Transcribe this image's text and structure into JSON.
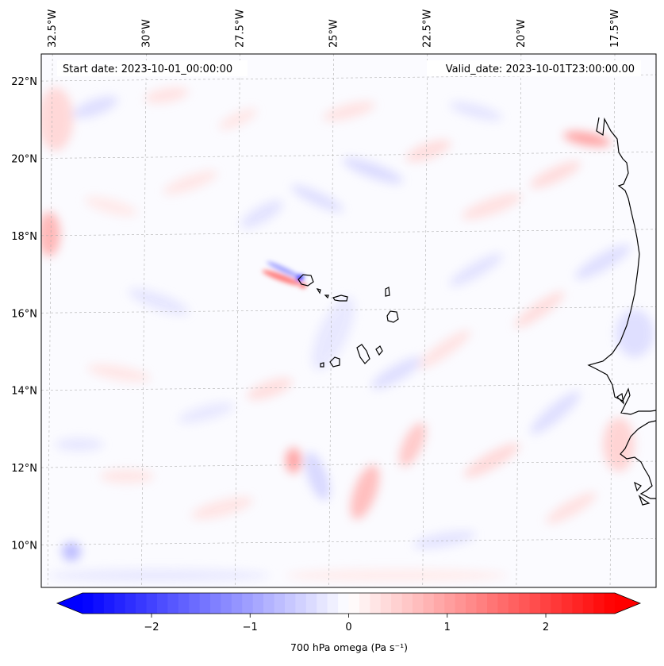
{
  "map": {
    "start_label": "Start date: 2023-10-01_00:00:00",
    "valid_label": "Valid_date: 2023-10-01T23:00:00.00",
    "longitudes": [
      {
        "lon": -32.5,
        "label": "32.5°W"
      },
      {
        "lon": -30.0,
        "label": "30°W"
      },
      {
        "lon": -27.5,
        "label": "27.5°W"
      },
      {
        "lon": -25.0,
        "label": "25°W"
      },
      {
        "lon": -22.5,
        "label": "22.5°W"
      },
      {
        "lon": -20.0,
        "label": "20°W"
      },
      {
        "lon": -17.5,
        "label": "17.5°W"
      }
    ],
    "latitudes": [
      {
        "lat": 22,
        "label": "22°N"
      },
      {
        "lat": 20,
        "label": "20°N"
      },
      {
        "lat": 18,
        "label": "18°N"
      },
      {
        "lat": 16,
        "label": "16°N"
      },
      {
        "lat": 14,
        "label": "14°N"
      },
      {
        "lat": 12,
        "label": "12°N"
      },
      {
        "lat": 10,
        "label": "10°N"
      }
    ],
    "extent": {
      "lon_min": -32.8,
      "lon_max": -16.4,
      "lat_min": 8.9,
      "lat_max": 22.7
    },
    "colors": {
      "negative": "#0000ff",
      "zero": "#ffffff",
      "positive": "#ff0000",
      "coast": "#000000"
    }
  },
  "colorbar": {
    "label": "700 hPa omega (Pa s⁻¹)",
    "min": -2.7,
    "max": 2.7,
    "ticks": [
      {
        "value": -2,
        "label": "−2"
      },
      {
        "value": -1,
        "label": "−1"
      },
      {
        "value": 0,
        "label": "0"
      },
      {
        "value": 1,
        "label": "1"
      },
      {
        "value": 2,
        "label": "2"
      }
    ]
  }
}
